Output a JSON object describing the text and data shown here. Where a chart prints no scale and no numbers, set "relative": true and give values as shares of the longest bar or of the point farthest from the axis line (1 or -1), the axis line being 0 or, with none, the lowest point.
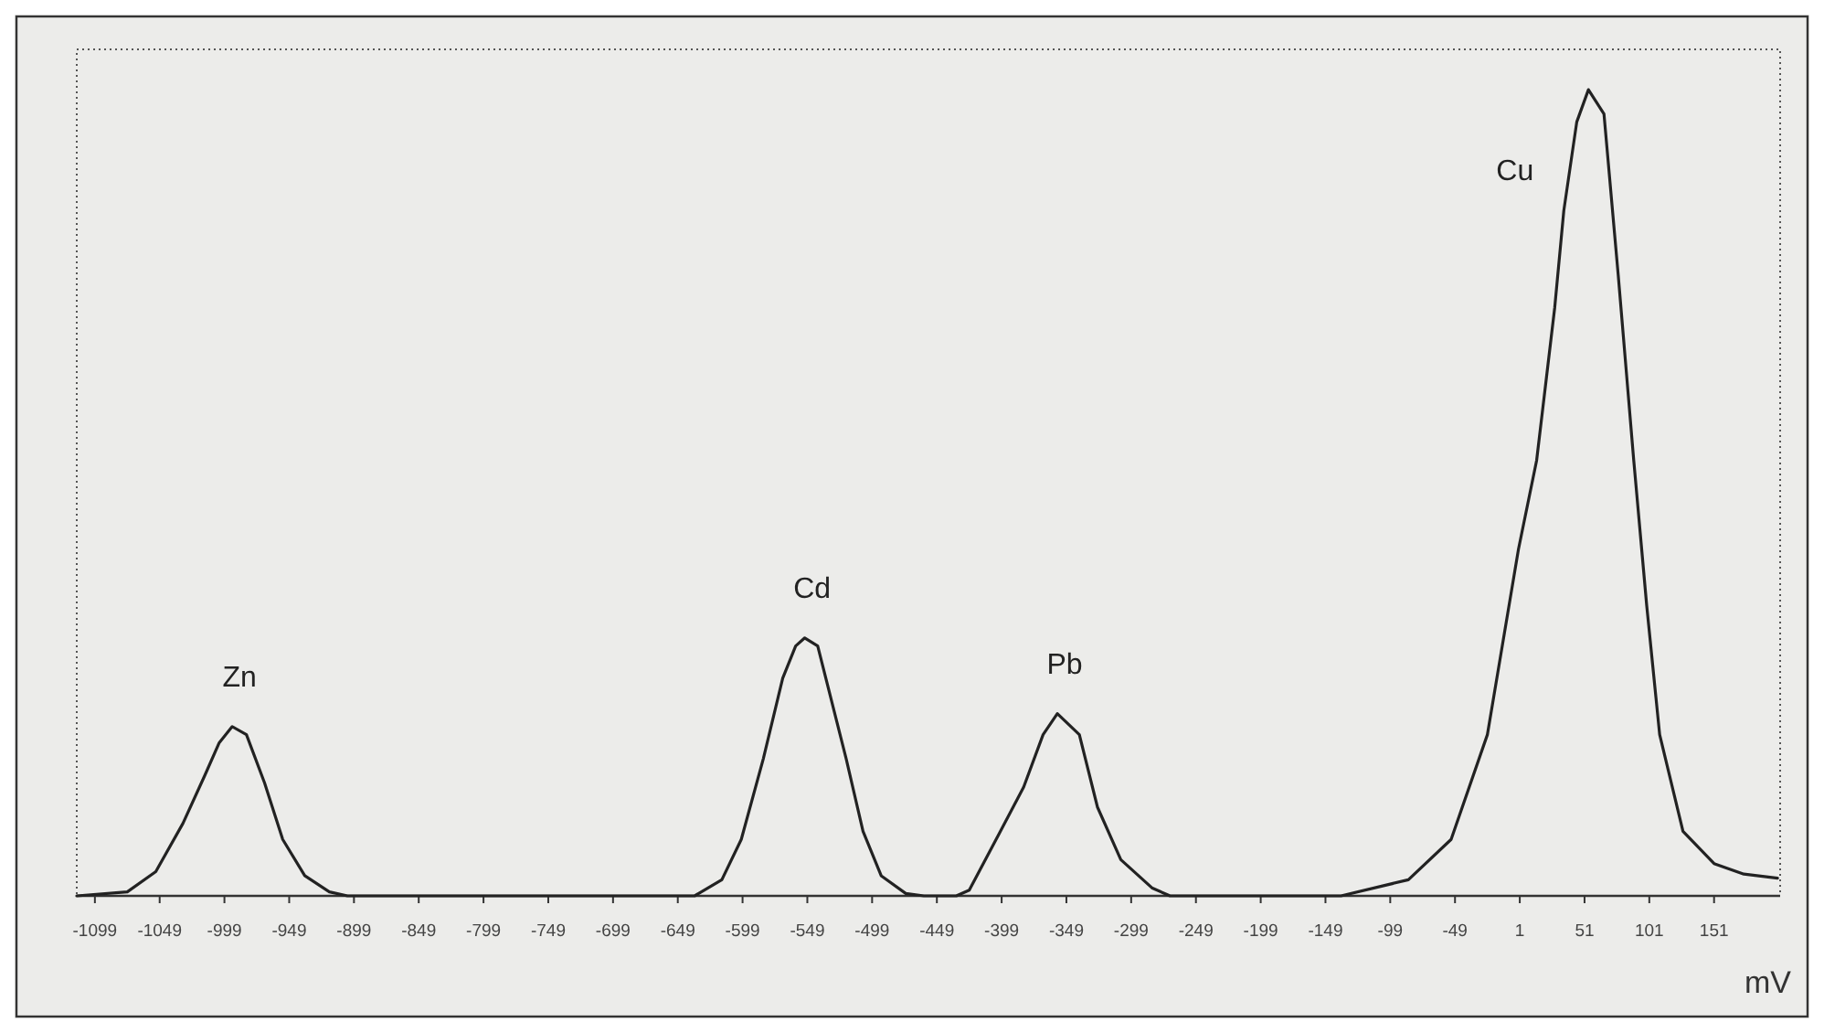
{
  "chart_data": {
    "type": "line",
    "relative": true,
    "xlabel": "mV",
    "xlim": [
      -1113,
      202
    ],
    "xticks": [
      -1099,
      -1049,
      -999,
      -949,
      -899,
      -849,
      -799,
      -749,
      -699,
      -649,
      -599,
      -549,
      -499,
      -449,
      -399,
      -349,
      -299,
      -249,
      -199,
      -149,
      -99,
      -49,
      1,
      51,
      101,
      151
    ],
    "grid": false,
    "marker": "none",
    "line_style": "solid",
    "series": [
      {
        "color": "#222222",
        "x": [
          -1113,
          -1074,
          -1052,
          -1031,
          -1014,
          -1003,
          -993,
          -982,
          -968,
          -954,
          -937,
          -918,
          -904,
          -636,
          -615,
          -600,
          -583,
          -568,
          -558,
          -551,
          -541,
          -530,
          -519,
          -506,
          -492,
          -473,
          -459,
          -434,
          -424,
          -400,
          -382,
          -367,
          -356,
          -339,
          -325,
          -307,
          -283,
          -269,
          -137,
          -85,
          -52,
          -24,
          0,
          14,
          28,
          35,
          45,
          54,
          66,
          77,
          89,
          99,
          109,
          127,
          151,
          174,
          200
        ],
        "values": [
          0,
          0.005,
          0.03,
          0.09,
          0.15,
          0.19,
          0.21,
          0.2,
          0.14,
          0.07,
          0.025,
          0.005,
          0,
          0,
          0.02,
          0.07,
          0.17,
          0.27,
          0.31,
          0.32,
          0.31,
          0.24,
          0.17,
          0.08,
          0.025,
          0.003,
          0,
          0,
          0.007,
          0.08,
          0.135,
          0.2,
          0.226,
          0.2,
          0.11,
          0.045,
          0.01,
          0,
          0,
          0.02,
          0.07,
          0.2,
          0.43,
          0.54,
          0.73,
          0.85,
          0.96,
          1,
          0.97,
          0.77,
          0.54,
          0.36,
          0.2,
          0.08,
          0.04,
          0.027,
          0.022
        ]
      }
    ],
    "annotations": [
      {
        "text": "Zn",
        "x": -993,
        "y": 0.21
      },
      {
        "text": "Cd",
        "x": -551,
        "y": 0.32
      },
      {
        "text": "Pb",
        "x": -356,
        "y": 0.226
      },
      {
        "text": "Cu",
        "x": 54,
        "y": 1
      }
    ]
  }
}
